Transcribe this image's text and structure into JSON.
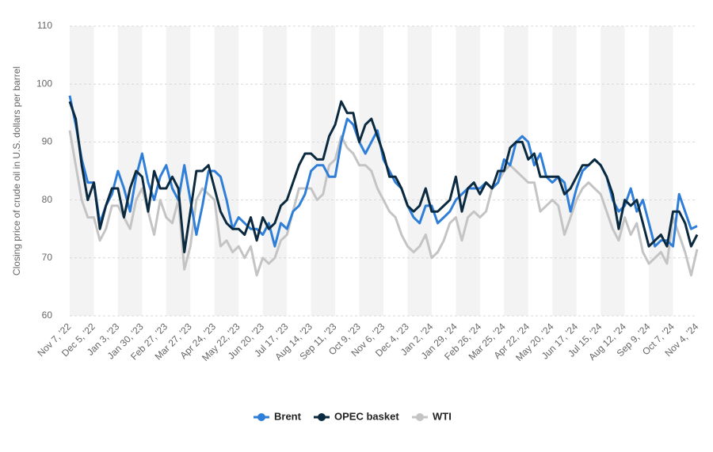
{
  "chart_data": {
    "type": "line",
    "ylabel": "Closing price of crude oil in U.S. dollars per barrel",
    "categories": [
      "Nov 7, '22",
      null,
      null,
      null,
      "Dec 5, '22",
      null,
      null,
      null,
      "Jan 3, '23",
      null,
      null,
      null,
      "Jan 30, '23",
      null,
      null,
      null,
      "Feb 27, '23",
      null,
      null,
      null,
      "Mar 27, '23",
      null,
      null,
      null,
      "Apr 24, '23",
      null,
      null,
      null,
      "May 22, '23",
      null,
      null,
      null,
      "Jun 20, '23",
      null,
      null,
      null,
      "Jul 17, '23",
      null,
      null,
      null,
      "Aug 14, '23",
      null,
      null,
      null,
      "Sep 11, '23",
      null,
      null,
      null,
      "Oct 9, '23",
      null,
      null,
      null,
      "Nov 6, '23",
      null,
      null,
      null,
      "Dec 4, '23",
      null,
      null,
      null,
      "Jan 2, '24",
      null,
      null,
      null,
      "Jan 29, '24",
      null,
      null,
      null,
      "Feb 26, '24",
      null,
      null,
      null,
      "Mar 25, '24",
      null,
      null,
      null,
      "Apr 22, '24",
      null,
      null,
      null,
      "May 20, '24",
      null,
      null,
      null,
      "Jun 17, '24",
      null,
      null,
      null,
      "Jul 15, '24",
      null,
      null,
      null,
      "Aug 12, '24",
      null,
      null,
      null,
      "Sep 9, '24",
      null,
      null,
      null,
      "Oct 7, '24",
      null,
      null,
      null,
      "Nov 4, '24"
    ],
    "series": [
      {
        "name": "WTI",
        "color": "#c4c4c4",
        "values": [
          92,
          86,
          80,
          77,
          77,
          73,
          75,
          79,
          79,
          77,
          75,
          80,
          82,
          78,
          74,
          80,
          77,
          76,
          80,
          68,
          72,
          80,
          82,
          81,
          80,
          72,
          73,
          71,
          72,
          70,
          72,
          67,
          70,
          69,
          70,
          73,
          74,
          78,
          82,
          82,
          82,
          80,
          81,
          86,
          87,
          91,
          89,
          88,
          86,
          86,
          85,
          82,
          80,
          78,
          77,
          74,
          72,
          71,
          72,
          74,
          70,
          71,
          73,
          76,
          77,
          73,
          77,
          78,
          77,
          78,
          82,
          83,
          85,
          86,
          85,
          84,
          83,
          83,
          78,
          79,
          80,
          79,
          74,
          77,
          80,
          82,
          83,
          82,
          81,
          78,
          75,
          73,
          77,
          74,
          76,
          71,
          69,
          70,
          71,
          69,
          77,
          74,
          71,
          67,
          71.5
        ]
      },
      {
        "name": "Brent",
        "color": "#2f7ed8",
        "values": [
          98,
          93,
          87,
          83,
          83,
          76,
          79,
          81,
          85,
          82,
          78,
          84,
          88,
          83,
          80,
          84,
          86,
          82,
          80,
          86,
          80,
          74,
          79,
          85,
          85,
          84,
          80,
          75,
          77,
          76,
          75,
          75,
          74,
          76,
          72,
          76,
          75,
          78,
          79,
          81,
          85,
          86,
          86,
          84,
          84,
          90,
          94,
          93,
          90,
          88,
          90,
          92,
          87,
          85,
          83,
          82,
          79,
          77,
          76,
          79,
          79,
          76,
          77,
          78,
          80,
          81,
          82,
          82,
          82,
          83,
          82,
          83,
          87,
          86,
          90,
          91,
          90,
          86,
          88,
          84,
          83,
          84,
          83,
          78,
          82,
          85,
          86,
          87,
          86,
          84,
          80,
          78,
          79,
          82,
          78,
          80,
          76,
          72,
          73,
          73,
          72,
          81,
          78,
          75,
          75.5
        ]
      },
      {
        "name": "OPEC basket",
        "color": "#0b2a3f",
        "values": [
          97,
          94,
          86,
          80,
          83,
          75,
          79,
          82,
          82,
          77,
          82,
          85,
          84,
          78,
          85,
          82,
          82,
          84,
          82,
          71,
          78,
          85,
          85,
          86,
          82,
          78,
          76,
          75,
          75,
          74,
          77,
          73,
          77,
          75,
          76,
          79,
          80,
          83,
          86,
          88,
          88,
          87,
          87,
          91,
          93,
          97,
          95,
          95,
          90,
          93,
          94,
          91,
          88,
          84,
          84,
          82,
          79,
          78,
          79,
          82,
          78,
          78,
          79,
          80,
          84,
          78,
          82,
          83,
          81,
          83,
          82,
          85,
          85,
          89,
          90,
          90,
          87,
          88,
          84,
          84,
          84,
          84,
          81,
          82,
          84,
          86,
          86,
          87,
          86,
          84,
          81,
          75,
          80,
          79,
          80,
          76,
          72,
          73,
          74,
          72,
          78,
          78,
          76,
          72,
          74
        ]
      }
    ],
    "ylim": [
      60,
      110
    ],
    "yticks": [
      60,
      70,
      80,
      90,
      100,
      110
    ],
    "grid": true,
    "legend": "bottom",
    "legend_order": [
      1,
      2,
      0
    ]
  }
}
